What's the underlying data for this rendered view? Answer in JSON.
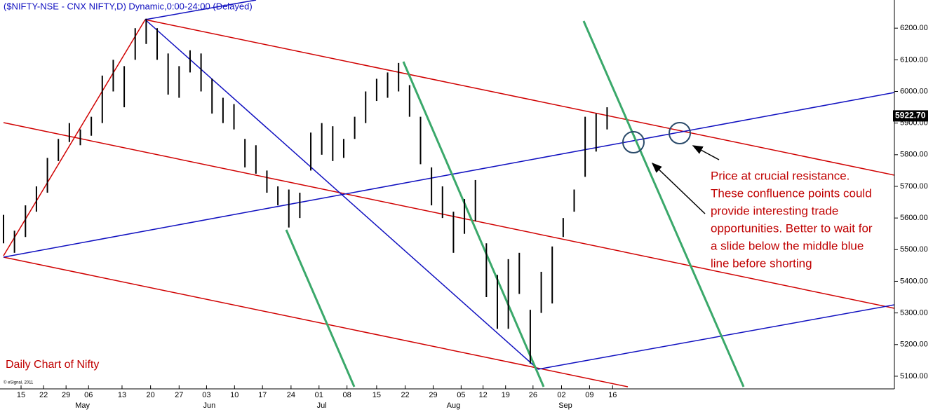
{
  "chart_data": {
    "type": "ohlc",
    "title": "($NIFTY-NSE - CNX NIFTY,D) Dynamic,0:00-24:00 (Delayed)",
    "subtitle": "Daily Chart of Nifty",
    "credit": "© eSignal, 2011",
    "last_price": {
      "value": 5922.7,
      "label": "5922.70"
    },
    "annotation": [
      "Price at crucial resistance.",
      "These confluence points could",
      "provide interesting trade",
      "opportunities. Better to wait for",
      "a slide below the middle blue",
      "line before shorting"
    ],
    "color": "#000000",
    "x": [
      0,
      2,
      4,
      6,
      8,
      10,
      12,
      14,
      16,
      18,
      20,
      22,
      24,
      26,
      28,
      30,
      32,
      34,
      36,
      38,
      40,
      42,
      44,
      46,
      48,
      50,
      52,
      54,
      56,
      58,
      60,
      62,
      64,
      66,
      68,
      70,
      72,
      74,
      76,
      78,
      80,
      82,
      84,
      86,
      88,
      90,
      92,
      94,
      96,
      98,
      100,
      102,
      104,
      106,
      108,
      110
    ],
    "high": [
      5610,
      5560,
      5640,
      5700,
      5790,
      5850,
      5900,
      5880,
      5920,
      6050,
      6100,
      6080,
      6200,
      6230,
      6200,
      6120,
      6080,
      6130,
      6120,
      6040,
      5980,
      5960,
      5850,
      5830,
      5750,
      5700,
      5690,
      5680,
      5870,
      5900,
      5890,
      5850,
      5920,
      6000,
      6040,
      6060,
      6090,
      6020,
      5920,
      5760,
      5700,
      5620,
      5660,
      5720,
      5520,
      5420,
      5470,
      5490,
      5310,
      5430,
      5510,
      5600,
      5690,
      5920,
      5930,
      5950
    ],
    "low": [
      5520,
      5490,
      5540,
      5620,
      5680,
      5780,
      5840,
      5830,
      5860,
      5900,
      6000,
      5950,
      6100,
      6150,
      6100,
      5990,
      5980,
      6060,
      6000,
      5930,
      5900,
      5880,
      5760,
      5740,
      5680,
      5640,
      5570,
      5600,
      5750,
      5800,
      5780,
      5790,
      5850,
      5900,
      5970,
      5980,
      6000,
      5920,
      5770,
      5640,
      5600,
      5490,
      5550,
      5590,
      5350,
      5250,
      5250,
      5360,
      5140,
      5300,
      5330,
      5540,
      5620,
      5730,
      5810,
      5880
    ],
    "xlim": [
      0,
      163
    ],
    "xticks": [
      {
        "value": 3.2,
        "label": "15"
      },
      {
        "value": 7.3,
        "label": "22"
      },
      {
        "value": 11.4,
        "label": "29"
      },
      {
        "value": 15.5,
        "label": "06"
      },
      {
        "value": 21.6,
        "label": "13"
      },
      {
        "value": 26.8,
        "label": "20"
      },
      {
        "value": 32,
        "label": "27"
      },
      {
        "value": 37,
        "label": "03"
      },
      {
        "value": 42.1,
        "label": "10"
      },
      {
        "value": 47.2,
        "label": "17"
      },
      {
        "value": 52.4,
        "label": "24"
      },
      {
        "value": 57.5,
        "label": "01"
      },
      {
        "value": 62.6,
        "label": "08"
      },
      {
        "value": 68,
        "label": "15"
      },
      {
        "value": 73.2,
        "label": "22"
      },
      {
        "value": 78.3,
        "label": "29"
      },
      {
        "value": 83.4,
        "label": "05"
      },
      {
        "value": 87.4,
        "label": "12"
      },
      {
        "value": 91.5,
        "label": "19"
      },
      {
        "value": 96.5,
        "label": "26"
      },
      {
        "value": 101.7,
        "label": "02"
      },
      {
        "value": 106.8,
        "label": "09"
      },
      {
        "value": 111,
        "label": "16"
      }
    ],
    "months": [
      {
        "value": 14.4,
        "label": "May"
      },
      {
        "value": 37.5,
        "label": "Jun"
      },
      {
        "value": 58,
        "label": "Jul"
      },
      {
        "value": 82,
        "label": "Aug"
      },
      {
        "value": 102.4,
        "label": "Sep"
      }
    ],
    "ylim": [
      5060,
      6289
    ],
    "yticks": [
      {
        "value": 5100,
        "label": "5100.00"
      },
      {
        "value": 5200,
        "label": "5200.00"
      },
      {
        "value": 5300,
        "label": "5300.00"
      },
      {
        "value": 5400,
        "label": "5400.00"
      },
      {
        "value": 5500,
        "label": "5500.00"
      },
      {
        "value": 5600,
        "label": "5600.00"
      },
      {
        "value": 5700,
        "label": "5700.00"
      },
      {
        "value": 5800,
        "label": "5800.00"
      },
      {
        "value": 5900,
        "label": "5900.00"
      },
      {
        "value": 6000,
        "label": "6000.00"
      },
      {
        "value": 6100,
        "label": "6100.00"
      },
      {
        "value": 6200,
        "label": "6200.00"
      }
    ]
  }
}
